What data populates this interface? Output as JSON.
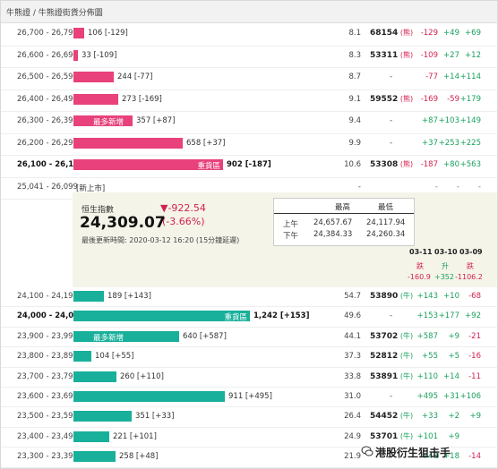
{
  "title": "牛熊證 / 牛熊證街貨分佈圖",
  "bull_rows": [
    {
      "range": "26,700 - 26,799",
      "text": "106 [-129]",
      "pct": "8.1",
      "vol": "68154",
      "tag": "(熊)",
      "c1": "-129",
      "c2": "+49",
      "c3": "+69",
      "c1c": "red",
      "c2c": "green",
      "c3c": "green",
      "bar": 0.06
    },
    {
      "range": "26,600 - 26,699",
      "text": "33 [-109]",
      "pct": "8.3",
      "vol": "53311",
      "tag": "(熊)",
      "c1": "-109",
      "c2": "+27",
      "c3": "+12",
      "c1c": "red",
      "c2c": "green",
      "c3c": "green",
      "bar": 0.025
    },
    {
      "range": "26,500 - 26,599",
      "text": "244 [-77]",
      "pct": "8.7",
      "vol": "",
      "tag": "",
      "c1": "-77",
      "c2": "+14",
      "c3": "+114",
      "c1c": "red",
      "c2c": "green",
      "c3c": "green",
      "bar": 0.23
    },
    {
      "range": "26,400 - 26,499",
      "text": "273 [-169]",
      "pct": "9.1",
      "vol": "59552",
      "tag": "(熊)",
      "c1": "-169",
      "c2": "-59",
      "c3": "+179",
      "c1c": "red",
      "c2c": "red",
      "c3c": "green",
      "bar": 0.255
    },
    {
      "range": "26,300 - 26,399",
      "text": "357 [+87]",
      "inner": "最多新增",
      "pct": "9.4",
      "vol": "",
      "tag": "",
      "c1": "+87",
      "c2": "+103",
      "c3": "+149",
      "c1c": "green",
      "c2c": "green",
      "c3c": "green",
      "bar": 0.335
    },
    {
      "range": "26,200 - 26,299",
      "text": "658 [+37]",
      "pct": "9.9",
      "vol": "",
      "tag": "",
      "c1": "+37",
      "c2": "+253",
      "c3": "+225",
      "c1c": "green",
      "c2c": "green",
      "c3c": "green",
      "bar": 0.62
    },
    {
      "range": "26,100 - 26,199",
      "text": "902 [-187]",
      "inner": "重貨區",
      "pct": "10.6",
      "vol": "53308",
      "tag": "(熊)",
      "c1": "-187",
      "c2": "+80",
      "c3": "+563",
      "c1c": "red",
      "c2c": "green",
      "c3c": "green",
      "bar": 0.85,
      "bold": true
    },
    {
      "range": "25,041 - 26,099",
      "text": "[新上市]",
      "pct": "-",
      "vol": "",
      "tag": "",
      "c1": "-",
      "c2": "-",
      "c3": "-",
      "c1c": "grey",
      "c2c": "grey",
      "c3c": "grey",
      "bar": 0
    }
  ],
  "index": {
    "name": "恒生指數",
    "price": "24,309.07",
    "change": "▼-922.54",
    "change_pct": "(-3.66%)",
    "updated": "最後更新時間: 2020-03-12 16:20 (15分鐘延遲)",
    "table": {
      "hi_label": "最高",
      "lo_label": "最低",
      "am_label": "上午",
      "am_hi": "24,657.67",
      "am_lo": "24,117.94",
      "pm_label": "下午",
      "pm_hi": "24,384.33",
      "pm_lo": "24,260.34"
    },
    "history": {
      "dates": [
        "03-11",
        "03-10",
        "03-09"
      ],
      "moves": [
        "跌",
        "升",
        "跌"
      ],
      "points": [
        "-160.9",
        "+352",
        "-1106.2"
      ]
    }
  },
  "bear_rows": [
    {
      "range": "24,100 - 24,199",
      "text": "189 [+143]",
      "pct": "54.7",
      "vol": "53890",
      "tag": "(牛)",
      "c1": "+143",
      "c2": "+10",
      "c3": "-68",
      "c1c": "green",
      "c2c": "green",
      "c3c": "red",
      "bar": 0.175
    },
    {
      "range": "24,000 - 24,099",
      "text": "1,242 [+153]",
      "inner": "重貨區",
      "pct": "49.6",
      "vol": "",
      "tag": "",
      "c1": "+153",
      "c2": "+177",
      "c3": "+92",
      "c1c": "green",
      "c2c": "green",
      "c3c": "green",
      "bar": 1.0,
      "bold": true
    },
    {
      "range": "23,900 - 23,999",
      "text": "640 [+587]",
      "inner": "最多新增",
      "pct": "44.1",
      "vol": "53702",
      "tag": "(牛)",
      "c1": "+587",
      "c2": "+9",
      "c3": "-21",
      "c1c": "green",
      "c2c": "green",
      "c3c": "red",
      "bar": 0.6
    },
    {
      "range": "23,800 - 23,899",
      "text": "104 [+55]",
      "pct": "37.3",
      "vol": "52812",
      "tag": "(牛)",
      "c1": "+55",
      "c2": "+5",
      "c3": "-16",
      "c1c": "green",
      "c2c": "green",
      "c3c": "red",
      "bar": 0.1
    },
    {
      "range": "23,700 - 23,799",
      "text": "260 [+110]",
      "pct": "33.8",
      "vol": "53891",
      "tag": "(牛)",
      "c1": "+110",
      "c2": "+14",
      "c3": "-11",
      "c1c": "green",
      "c2c": "green",
      "c3c": "red",
      "bar": 0.245
    },
    {
      "range": "23,600 - 23,699",
      "text": "911 [+495]",
      "pct": "31.0",
      "vol": "",
      "tag": "",
      "c1": "+495",
      "c2": "+31",
      "c3": "+106",
      "c1c": "green",
      "c2c": "green",
      "c3c": "green",
      "bar": 0.86
    },
    {
      "range": "23,500 - 23,599",
      "text": "351 [+33]",
      "pct": "26.4",
      "vol": "54452",
      "tag": "(牛)",
      "c1": "+33",
      "c2": "+2",
      "c3": "+9",
      "c1c": "green",
      "c2c": "green",
      "c3c": "green",
      "bar": 0.33
    },
    {
      "range": "23,400 - 23,499",
      "text": "221 [+101]",
      "pct": "24.9",
      "vol": "53701",
      "tag": "(牛)",
      "c1": "+101",
      "c2": "+9",
      "c3": "",
      "c1c": "green",
      "c2c": "green",
      "c3c": "green",
      "bar": 0.205
    },
    {
      "range": "23,300 - 23,399",
      "text": "258 [+48]",
      "pct": "21.9",
      "vol": "",
      "tag": "",
      "c1": "+48",
      "c2": "+18",
      "c3": "-14",
      "c1c": "green",
      "c2c": "green",
      "c3c": "red",
      "bar": 0.24
    }
  ],
  "watermark": "港股衍生狙击手",
  "colors": {
    "bear_bar": "#e8417b",
    "bull_bar": "#18b09b",
    "up": "#19a15d",
    "down": "#d3224f"
  }
}
